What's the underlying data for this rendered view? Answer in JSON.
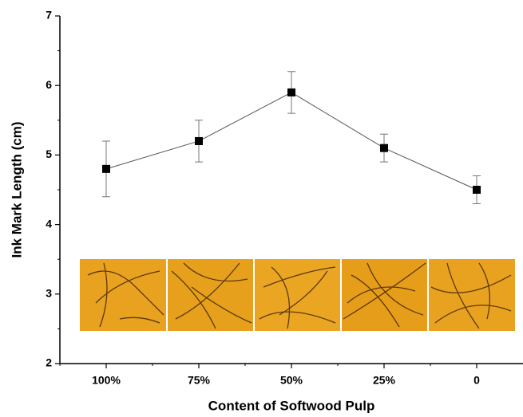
{
  "chart_data": {
    "type": "line",
    "xlabel": "Content of Softwood Pulp",
    "ylabel": "Ink Mark Length (cm)",
    "categories": [
      "100%",
      "75%",
      "50%",
      "25%",
      "0"
    ],
    "values": [
      4.8,
      5.2,
      5.9,
      5.1,
      4.5
    ],
    "errors": [
      0.4,
      0.3,
      0.3,
      0.2,
      0.2
    ],
    "color": "#000000",
    "ylim": [
      2,
      7
    ],
    "yticks": [
      2,
      3,
      4,
      5,
      6,
      7
    ]
  }
}
